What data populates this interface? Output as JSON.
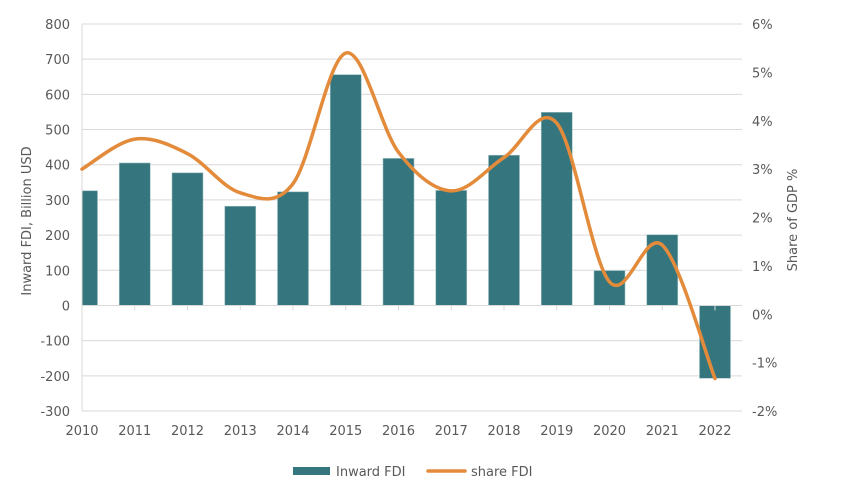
{
  "chart_data": {
    "type": "bar",
    "combo": "bar+line (dual axis)",
    "title": "",
    "categories": [
      "2010",
      "2011",
      "2012",
      "2013",
      "2014",
      "2015",
      "2016",
      "2017",
      "2018",
      "2019",
      "2020",
      "2021",
      "2022"
    ],
    "series": [
      {
        "name": "Inward FDI",
        "type": "bar",
        "axis": "left",
        "color": "#35767e",
        "values": [
          326,
          405,
          377,
          282,
          323,
          656,
          418,
          327,
          427,
          549,
          99,
          201,
          -207
        ]
      },
      {
        "name": "share FDI",
        "type": "line",
        "smooth": true,
        "axis": "right",
        "color": "#e38b3a",
        "values": [
          3.0,
          3.62,
          3.32,
          2.51,
          2.7,
          5.4,
          3.35,
          2.55,
          3.24,
          3.95,
          0.67,
          1.43,
          -1.33
        ]
      }
    ],
    "xlabel": "",
    "ylabel": "Inward FDI, Billion USD",
    "y2label": "Share of GDP %",
    "ylim": [
      -300,
      800
    ],
    "yticks": [
      -300,
      -200,
      -100,
      0,
      100,
      200,
      300,
      400,
      500,
      600,
      700,
      800
    ],
    "ytick_labels": [
      "-300",
      "-200",
      "-100",
      "0",
      "100",
      "200",
      "300",
      "400",
      "500",
      "600",
      "700",
      "800"
    ],
    "y2lim": [
      -2,
      6
    ],
    "y2ticks": [
      -2,
      -1,
      0,
      1,
      2,
      3,
      4,
      5,
      6
    ],
    "y2tick_labels": [
      "-2%",
      "-1%",
      "0%",
      "1%",
      "2%",
      "3%",
      "4%",
      "5%",
      "6%"
    ],
    "grid": true,
    "legend": {
      "position": "bottom",
      "entries": [
        {
          "label": "Inward FDI",
          "kind": "bar",
          "color": "#35767e"
        },
        {
          "label": "share FDI",
          "kind": "line",
          "color": "#e38b3a"
        }
      ]
    }
  }
}
